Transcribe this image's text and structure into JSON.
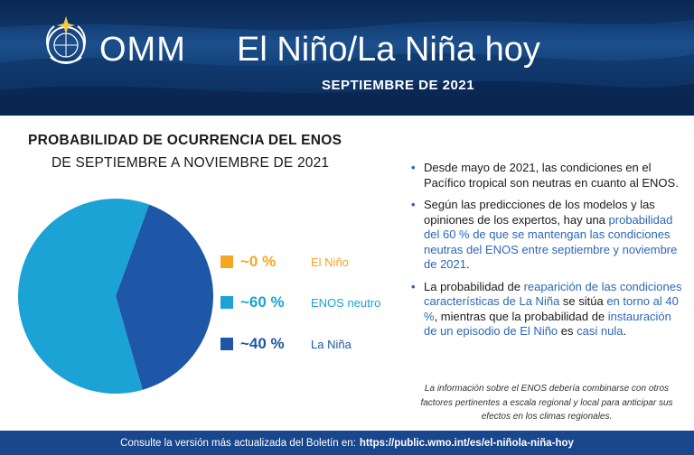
{
  "header": {
    "org": "OMM",
    "title": "El Niño/La Niña hoy",
    "date": "SEPTIEMBRE DE 2021"
  },
  "chart_data": {
    "type": "pie",
    "title": "PROBABILIDAD DE OCURRENCIA DEL ENOS",
    "subtitle": "DE SEPTIEMBRE A NOVIEMBRE DE 2021",
    "categories": [
      "El Niño",
      "ENOS neutro",
      "La Niña"
    ],
    "values": [
      0,
      60,
      40
    ],
    "value_labels": [
      "~0 %",
      "~60 %",
      "~40 %"
    ],
    "colors": [
      "#f5a623",
      "#1aa3d4",
      "#1e56a8"
    ],
    "legend_position": "right"
  },
  "bullets": [
    {
      "segments": [
        {
          "text": "Desde mayo de 2021, las condiciones en el Pacífico tropical son neutras en cuanto al ENOS.",
          "highlight": false
        }
      ]
    },
    {
      "segments": [
        {
          "text": "Según las predicciones de los modelos y las opiniones de los expertos, hay una ",
          "highlight": false
        },
        {
          "text": "probabilidad del 60 % de que se mantengan las condiciones neutras del ENOS entre septiembre y noviembre de 2021",
          "highlight": true
        },
        {
          "text": ".",
          "highlight": false
        }
      ]
    },
    {
      "segments": [
        {
          "text": "La probabilidad de ",
          "highlight": false
        },
        {
          "text": "reaparición de las condiciones características de La Niña",
          "highlight": true
        },
        {
          "text": " se sitúa ",
          "highlight": false
        },
        {
          "text": "en torno al 40 %",
          "highlight": true
        },
        {
          "text": ", mientras que la probabilidad de ",
          "highlight": false
        },
        {
          "text": "instauración de un episodio de El Niño",
          "highlight": true
        },
        {
          "text": " es ",
          "highlight": false
        },
        {
          "text": "casi nula",
          "highlight": true
        },
        {
          "text": ".",
          "highlight": false
        }
      ]
    }
  ],
  "note": "La información sobre el ENOS debería combinarse con otros factores pertinentes a escala regional y local para anticipar sus efectos en los climas regionales.",
  "footer": {
    "text": "Consulte la versión más actualizada del Boletín en:",
    "url": "https://public.wmo.int/es/el-niñola-niña-hoy"
  },
  "colors": {
    "banner": "#0f3a70",
    "footer": "#19468c",
    "highlight": "#2c66b8",
    "bullet_marker": "#3a67a8"
  },
  "icons": {
    "logo": "wmo-emblem-icon",
    "bullet": "bullet-dot-icon"
  }
}
